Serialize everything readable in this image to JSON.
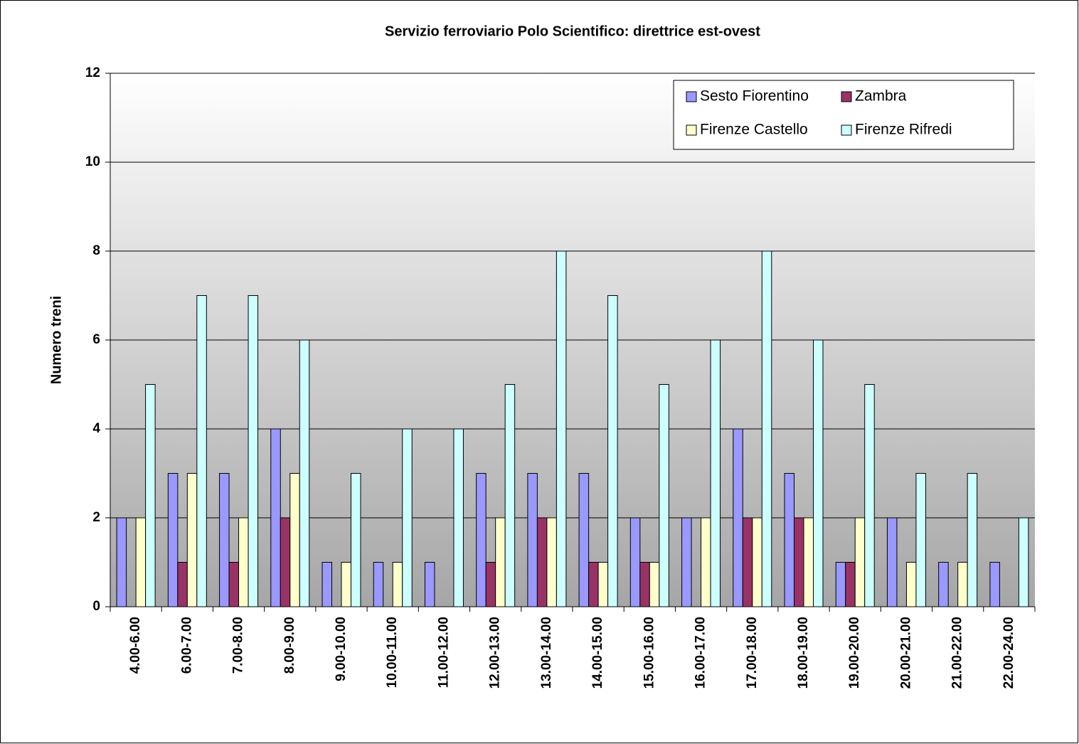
{
  "chart_data": {
    "type": "bar",
    "title": "Servizio ferroviario Polo Scientifico: direttrice est-ovest",
    "y_label": "Numero treni",
    "categories": [
      "4.00-6.00",
      "6.00-7.00",
      "7.00-8.00",
      "8.00-9.00",
      "9.00-10.00",
      "10.00-11.00",
      "11.00-12.00",
      "12.00-13.00",
      "13.00-14.00",
      "14.00-15.00",
      "15.00-16.00",
      "16.00-17.00",
      "17.00-18.00",
      "18.00-19.00",
      "19.00-20.00",
      "20.00-21.00",
      "21.00-22.00",
      "22.00-24.00"
    ],
    "series": [
      {
        "name": "Sesto Fiorentino",
        "color": "#9999ff",
        "values": [
          2,
          3,
          3,
          4,
          1,
          1,
          1,
          3,
          3,
          3,
          2,
          2,
          4,
          3,
          1,
          2,
          1,
          1
        ]
      },
      {
        "name": "Zambra",
        "color": "#993366",
        "values": [
          0,
          1,
          1,
          2,
          0,
          0,
          0,
          1,
          2,
          1,
          1,
          0,
          2,
          2,
          1,
          0,
          0,
          0
        ]
      },
      {
        "name": "Firenze Castello",
        "color": "#ffffcc",
        "values": [
          2,
          3,
          2,
          3,
          1,
          1,
          0,
          2,
          2,
          1,
          1,
          2,
          2,
          2,
          2,
          1,
          1,
          0
        ]
      },
      {
        "name": "Firenze Rifredi",
        "color": "#ccffff",
        "values": [
          5,
          7,
          7,
          6,
          3,
          4,
          4,
          5,
          8,
          7,
          5,
          6,
          8,
          6,
          5,
          3,
          3,
          2
        ]
      }
    ],
    "ylim": [
      0,
      12
    ],
    "yticks": [
      0,
      2,
      4,
      6,
      8,
      10,
      12
    ],
    "grid": true,
    "legend": "top-right"
  }
}
